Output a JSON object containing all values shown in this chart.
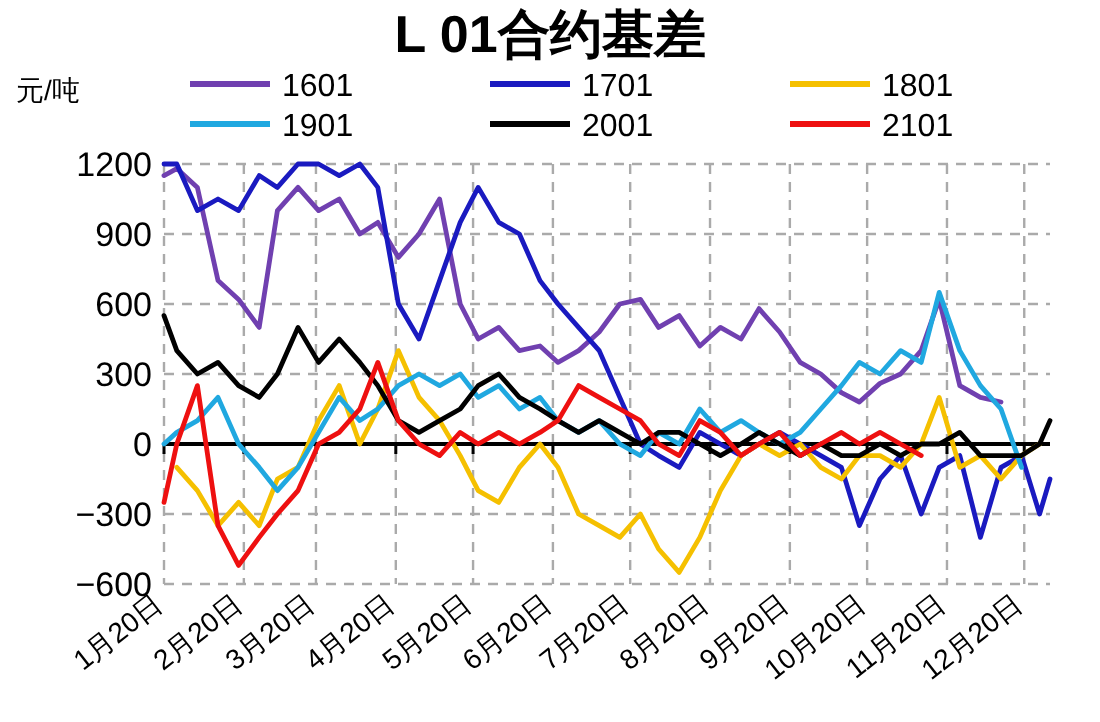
{
  "chart_data": {
    "type": "line",
    "title": "L 01合约基差",
    "ylabel": "元/吨",
    "legend": "top",
    "grid": true,
    "marker": "none",
    "line_style": "solid",
    "x": [
      "--01-20",
      "--01-25",
      "--02-02",
      "--02-10",
      "--02-18",
      "--02-26",
      "--03-05",
      "--03-13",
      "--03-21",
      "--03-29",
      "--04-06",
      "--04-13",
      "--04-21",
      "--04-29",
      "--05-07",
      "--05-15",
      "--05-22",
      "--05-30",
      "--06-07",
      "--06-15",
      "--06-22",
      "--06-30",
      "--07-08",
      "--07-16",
      "--07-24",
      "--07-31",
      "--08-08",
      "--08-16",
      "--08-24",
      "--09-01",
      "--09-08",
      "--09-16",
      "--09-24",
      "--10-02",
      "--10-10",
      "--10-17",
      "--10-25",
      "--11-02",
      "--11-10",
      "--11-17",
      "--11-25",
      "--12-03",
      "--12-11",
      "--12-19",
      "--12-26",
      "--12-30"
    ],
    "xlim": [
      "--01-20",
      "--12-30"
    ],
    "xticks": [
      {
        "value": "--01-20",
        "label": "1月20日"
      },
      {
        "value": "--02-20",
        "label": "2月20日"
      },
      {
        "value": "--03-20",
        "label": "3月20日"
      },
      {
        "value": "--04-20",
        "label": "4月20日"
      },
      {
        "value": "--05-20",
        "label": "5月20日"
      },
      {
        "value": "--06-20",
        "label": "6月20日"
      },
      {
        "value": "--07-20",
        "label": "7月20日"
      },
      {
        "value": "--08-20",
        "label": "8月20日"
      },
      {
        "value": "--09-20",
        "label": "9月20日"
      },
      {
        "value": "--10-20",
        "label": "10月20日"
      },
      {
        "value": "--11-20",
        "label": "11月20日"
      },
      {
        "value": "--12-20",
        "label": "12月20日"
      }
    ],
    "ylim": [
      -600,
      1200
    ],
    "yticks": [
      -600,
      -300,
      0,
      300,
      600,
      900,
      1200
    ],
    "series": [
      {
        "name": "1601",
        "color": "#7040b0",
        "values": [
          1150,
          1180,
          1100,
          700,
          620,
          500,
          1000,
          1100,
          1000,
          1050,
          900,
          950,
          800,
          900,
          1050,
          600,
          450,
          500,
          400,
          420,
          350,
          400,
          480,
          600,
          620,
          500,
          550,
          420,
          500,
          450,
          580,
          480,
          350,
          300,
          220,
          180,
          260,
          300,
          400,
          620,
          250,
          200,
          180,
          null,
          null,
          null
        ]
      },
      {
        "name": "1701",
        "color": "#1a1ac0",
        "values": [
          1200,
          1200,
          1000,
          1050,
          1000,
          1150,
          1100,
          1200,
          1200,
          1150,
          1200,
          1100,
          600,
          450,
          700,
          950,
          1100,
          950,
          900,
          700,
          600,
          500,
          400,
          200,
          0,
          -50,
          -100,
          50,
          0,
          -50,
          0,
          50,
          0,
          -50,
          -100,
          -350,
          -150,
          -50,
          -300,
          -100,
          -50,
          -400,
          -100,
          -50,
          -300,
          -150
        ]
      },
      {
        "name": "1801",
        "color": "#f5c000",
        "values": [
          null,
          -100,
          -200,
          -350,
          -250,
          -350,
          -150,
          -100,
          100,
          250,
          0,
          150,
          400,
          200,
          100,
          -50,
          -200,
          -250,
          -100,
          0,
          -100,
          -300,
          -350,
          -400,
          -300,
          -450,
          -550,
          -400,
          -200,
          -50,
          0,
          -50,
          0,
          -100,
          -150,
          -50,
          -50,
          -100,
          0,
          200,
          -100,
          -50,
          -150,
          -50,
          0,
          null
        ]
      },
      {
        "name": "1901",
        "color": "#20a8e0",
        "values": [
          0,
          50,
          100,
          200,
          0,
          -100,
          -200,
          -100,
          50,
          200,
          100,
          150,
          250,
          300,
          250,
          300,
          200,
          250,
          150,
          200,
          100,
          50,
          100,
          0,
          -50,
          50,
          0,
          150,
          50,
          100,
          50,
          0,
          50,
          150,
          250,
          350,
          300,
          400,
          350,
          650,
          400,
          250,
          150,
          -100,
          null,
          null
        ]
      },
      {
        "name": "2001",
        "color": "#000000",
        "values": [
          550,
          400,
          300,
          350,
          250,
          200,
          300,
          500,
          350,
          450,
          350,
          250,
          100,
          50,
          100,
          150,
          250,
          300,
          200,
          150,
          100,
          50,
          100,
          50,
          0,
          50,
          50,
          0,
          -50,
          0,
          50,
          0,
          -50,
          0,
          -50,
          -50,
          0,
          -50,
          0,
          0,
          50,
          -50,
          -50,
          -50,
          0,
          100
        ]
      },
      {
        "name": "2101",
        "color": "#ee1010",
        "values": [
          -250,
          0,
          250,
          -350,
          -520,
          -400,
          -300,
          -200,
          0,
          50,
          150,
          350,
          100,
          0,
          -50,
          50,
          0,
          50,
          0,
          50,
          100,
          250,
          200,
          150,
          100,
          0,
          -50,
          100,
          50,
          -50,
          0,
          50,
          -50,
          0,
          50,
          0,
          50,
          0,
          -50,
          null,
          null,
          null,
          null,
          null,
          null,
          null
        ]
      }
    ]
  }
}
